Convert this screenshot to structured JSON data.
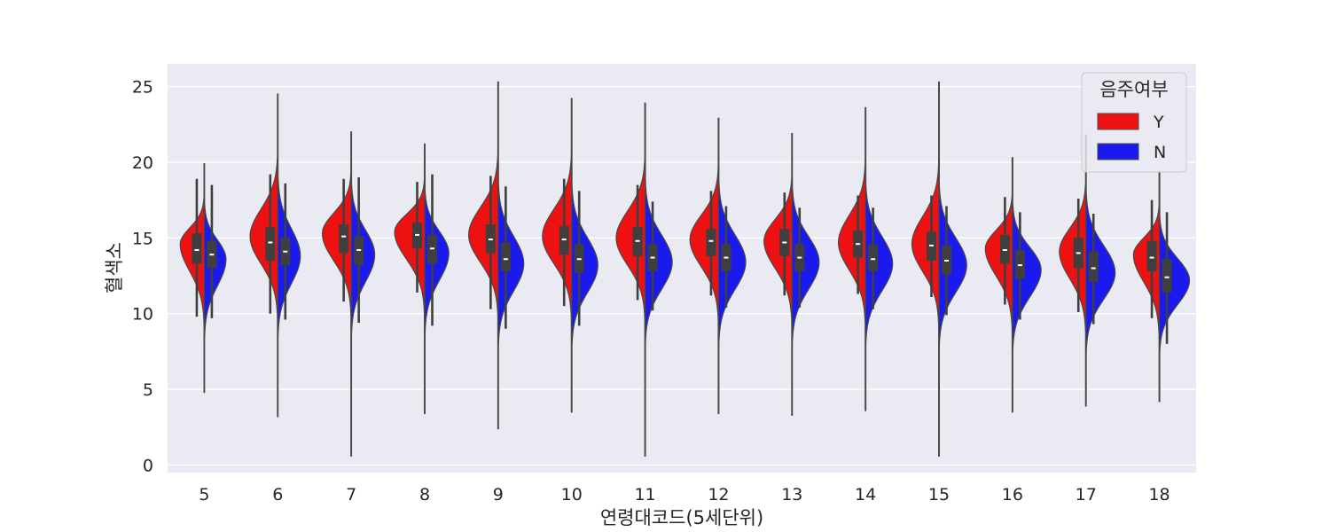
{
  "colors": {
    "background": "#eaeaf2",
    "grid": "#ffffff",
    "Y": "#ee1111",
    "N": "#1a1aee",
    "box": "#3f3f3f",
    "median": "#ffffff",
    "outline": "#474747"
  },
  "chart_data": {
    "type": "violin",
    "split": true,
    "xlabel": "연령대코드(5세단위)",
    "ylabel": "혈색소",
    "ylim": [
      -0.5,
      26.5
    ],
    "yticks": [
      "0",
      "5",
      "10",
      "15",
      "20",
      "25"
    ],
    "grid": true,
    "legend": {
      "title": "음주여부",
      "placement": "top-right",
      "entries": [
        "Y",
        "N"
      ]
    },
    "categories": [
      "5",
      "6",
      "7",
      "8",
      "9",
      "10",
      "11",
      "12",
      "13",
      "14",
      "15",
      "16",
      "17",
      "18"
    ],
    "series": [
      {
        "name": "Y",
        "color_key": "Y",
        "values": [
          {
            "min": 4.8,
            "max": 19.9,
            "wmin": 9.8,
            "wmax": 18.9,
            "q1": 13.3,
            "median": 14.2,
            "q3": 15.3,
            "mode": 14.6,
            "peak": 0.8
          },
          {
            "min": 3.2,
            "max": 24.5,
            "wmin": 10.0,
            "wmax": 19.2,
            "q1": 13.5,
            "median": 14.7,
            "q3": 15.7,
            "mode": 15.1,
            "peak": 0.92
          },
          {
            "min": 0.6,
            "max": 22.0,
            "wmin": 10.8,
            "wmax": 18.9,
            "q1": 14.0,
            "median": 15.1,
            "q3": 15.9,
            "mode": 15.3,
            "peak": 0.96
          },
          {
            "min": 3.4,
            "max": 21.2,
            "wmin": 11.4,
            "wmax": 18.7,
            "q1": 14.3,
            "median": 15.2,
            "q3": 16.0,
            "mode": 15.4,
            "peak": 1.0
          },
          {
            "min": 2.4,
            "max": 25.3,
            "wmin": 10.3,
            "wmax": 19.1,
            "q1": 14.0,
            "median": 14.9,
            "q3": 15.9,
            "mode": 15.2,
            "peak": 0.98
          },
          {
            "min": 3.5,
            "max": 24.2,
            "wmin": 10.5,
            "wmax": 18.9,
            "q1": 13.9,
            "median": 14.9,
            "q3": 15.8,
            "mode": 15.1,
            "peak": 0.97
          },
          {
            "min": 0.6,
            "max": 23.9,
            "wmin": 10.9,
            "wmax": 18.5,
            "q1": 13.8,
            "median": 14.8,
            "q3": 15.7,
            "mode": 15.0,
            "peak": 0.96
          },
          {
            "min": 3.4,
            "max": 22.9,
            "wmin": 11.2,
            "wmax": 18.1,
            "q1": 13.8,
            "median": 14.8,
            "q3": 15.6,
            "mode": 14.9,
            "peak": 0.95
          },
          {
            "min": 3.3,
            "max": 21.9,
            "wmin": 11.2,
            "wmax": 18.0,
            "q1": 13.8,
            "median": 14.7,
            "q3": 15.6,
            "mode": 14.8,
            "peak": 0.93
          },
          {
            "min": 3.6,
            "max": 23.6,
            "wmin": 11.3,
            "wmax": 17.8,
            "q1": 13.7,
            "median": 14.6,
            "q3": 15.5,
            "mode": 14.7,
            "peak": 0.9
          },
          {
            "min": 0.6,
            "max": 25.3,
            "wmin": 11.1,
            "wmax": 17.8,
            "q1": 13.5,
            "median": 14.5,
            "q3": 15.4,
            "mode": 14.6,
            "peak": 0.9
          },
          {
            "min": 3.5,
            "max": 20.3,
            "wmin": 10.6,
            "wmax": 17.7,
            "q1": 13.3,
            "median": 14.2,
            "q3": 15.2,
            "mode": 14.3,
            "peak": 0.9
          },
          {
            "min": 3.9,
            "max": 21.8,
            "wmin": 10.1,
            "wmax": 17.6,
            "q1": 13.0,
            "median": 14.0,
            "q3": 15.0,
            "mode": 14.1,
            "peak": 0.88
          },
          {
            "min": 4.2,
            "max": 19.4,
            "wmin": 9.7,
            "wmax": 17.5,
            "q1": 12.8,
            "median": 13.7,
            "q3": 14.8,
            "mode": 13.9,
            "peak": 0.86
          }
        ]
      },
      {
        "name": "N",
        "color_key": "N",
        "values": [
          {
            "min": 4.8,
            "max": 19.9,
            "wmin": 9.7,
            "wmax": 18.5,
            "q1": 13.0,
            "median": 13.9,
            "q3": 14.8,
            "mode": 13.6,
            "peak": 0.72
          },
          {
            "min": 3.2,
            "max": 24.5,
            "wmin": 9.6,
            "wmax": 18.6,
            "q1": 13.2,
            "median": 14.1,
            "q3": 15.0,
            "mode": 13.8,
            "peak": 0.75
          },
          {
            "min": 0.6,
            "max": 22.0,
            "wmin": 9.4,
            "wmax": 19.0,
            "q1": 13.2,
            "median": 14.2,
            "q3": 15.1,
            "mode": 13.9,
            "peak": 0.78
          },
          {
            "min": 3.4,
            "max": 21.2,
            "wmin": 9.2,
            "wmax": 19.2,
            "q1": 13.3,
            "median": 14.3,
            "q3": 15.2,
            "mode": 14.0,
            "peak": 0.8
          },
          {
            "min": 2.4,
            "max": 25.3,
            "wmin": 9.0,
            "wmax": 18.4,
            "q1": 12.8,
            "median": 13.6,
            "q3": 14.7,
            "mode": 13.3,
            "peak": 0.85
          },
          {
            "min": 3.5,
            "max": 24.2,
            "wmin": 9.2,
            "wmax": 18.1,
            "q1": 12.7,
            "median": 13.6,
            "q3": 14.6,
            "mode": 13.2,
            "peak": 0.87
          },
          {
            "min": 0.6,
            "max": 23.9,
            "wmin": 10.2,
            "wmax": 17.4,
            "q1": 12.8,
            "median": 13.7,
            "q3": 14.6,
            "mode": 13.4,
            "peak": 0.9
          },
          {
            "min": 3.4,
            "max": 22.9,
            "wmin": 10.4,
            "wmax": 17.1,
            "q1": 12.8,
            "median": 13.7,
            "q3": 14.6,
            "mode": 13.4,
            "peak": 0.9
          },
          {
            "min": 3.3,
            "max": 21.9,
            "wmin": 10.4,
            "wmax": 17.0,
            "q1": 12.8,
            "median": 13.7,
            "q3": 14.6,
            "mode": 13.4,
            "peak": 0.9
          },
          {
            "min": 3.6,
            "max": 23.6,
            "wmin": 10.3,
            "wmax": 17.0,
            "q1": 12.8,
            "median": 13.6,
            "q3": 14.6,
            "mode": 13.3,
            "peak": 0.9
          },
          {
            "min": 0.6,
            "max": 25.3,
            "wmin": 9.9,
            "wmax": 17.1,
            "q1": 12.6,
            "median": 13.5,
            "q3": 14.5,
            "mode": 13.2,
            "peak": 0.92
          },
          {
            "min": 3.5,
            "max": 20.3,
            "wmin": 9.6,
            "wmax": 16.7,
            "q1": 12.3,
            "median": 13.2,
            "q3": 14.2,
            "mode": 12.9,
            "peak": 0.95
          },
          {
            "min": 3.9,
            "max": 21.8,
            "wmin": 9.3,
            "wmax": 16.6,
            "q1": 12.1,
            "median": 13.0,
            "q3": 14.1,
            "mode": 12.7,
            "peak": 0.97
          },
          {
            "min": 4.2,
            "max": 19.4,
            "wmin": 8.0,
            "wmax": 16.7,
            "q1": 11.4,
            "median": 12.4,
            "q3": 13.6,
            "mode": 12.2,
            "peak": 1.0
          }
        ]
      }
    ]
  }
}
